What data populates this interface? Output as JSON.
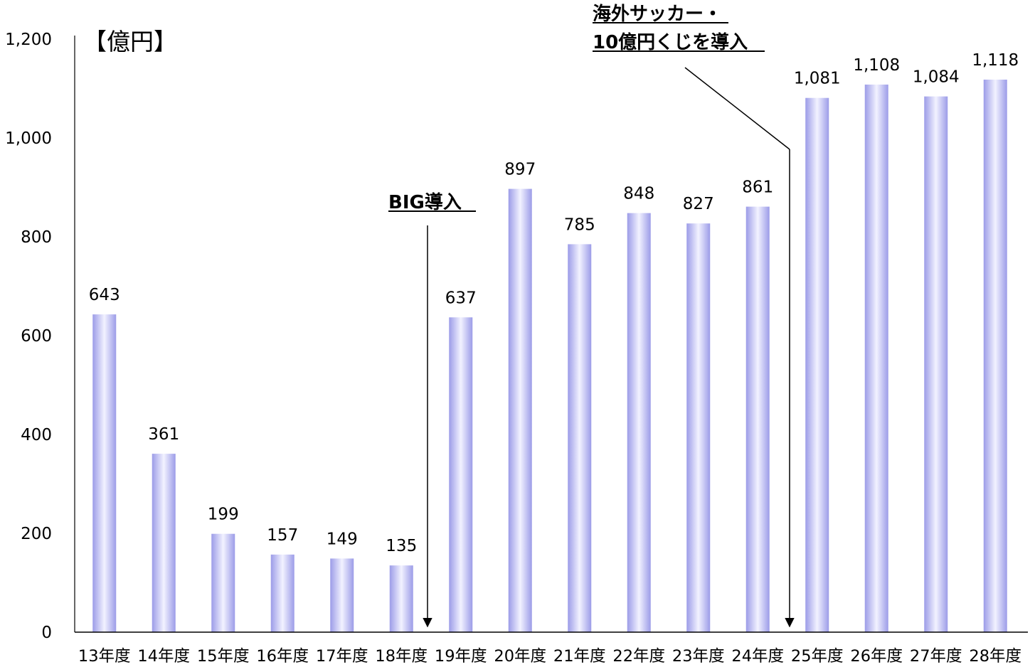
{
  "chart_data": {
    "type": "bar",
    "unit_label": "【億円】",
    "categories": [
      "13年度",
      "14年度",
      "15年度",
      "16年度",
      "17年度",
      "18年度",
      "19年度",
      "20年度",
      "21年度",
      "22年度",
      "23年度",
      "24年度",
      "25年度",
      "26年度",
      "27年度",
      "28年度"
    ],
    "values": [
      643,
      361,
      199,
      157,
      149,
      135,
      637,
      897,
      785,
      848,
      827,
      861,
      1081,
      1108,
      1084,
      1118
    ],
    "value_labels": [
      "643",
      "361",
      "199",
      "157",
      "149",
      "135",
      "637",
      "897",
      "785",
      "848",
      "827",
      "861",
      "1,081",
      "1,108",
      "1,084",
      "1,118"
    ],
    "ylim": [
      0,
      1200
    ],
    "yticks": [
      0,
      200,
      400,
      600,
      800,
      1000,
      1200
    ],
    "ytick_labels": [
      "0",
      "200",
      "400",
      "600",
      "800",
      "1,000",
      "1,200"
    ],
    "bar_color": "#9c9ce6",
    "annotations": [
      {
        "lines": [
          "BIG導入"
        ],
        "target_category": "19年度"
      },
      {
        "lines": [
          "海外サッカー・",
          "10億円くじを導入"
        ],
        "target_category": "25年度"
      }
    ]
  }
}
